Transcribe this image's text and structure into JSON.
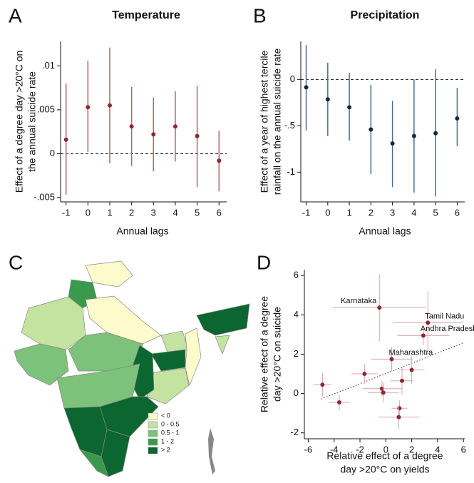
{
  "chart_data": [
    {
      "type": "errorbar",
      "panel_label": "A",
      "title": "Temperature",
      "ylabel": [
        "Effect of a degree day >20°C on",
        "the annual suicide rate"
      ],
      "xlabel": "Annual lags",
      "x": [
        -1,
        0,
        1,
        2,
        3,
        4,
        5,
        6
      ],
      "values": [
        0.0016,
        0.0053,
        0.0055,
        0.0031,
        0.0022,
        0.0031,
        0.002,
        -0.0008
      ],
      "lower": [
        -0.0047,
        0.0002,
        -0.0011,
        -0.0014,
        -0.002,
        -0.0009,
        -0.0038,
        -0.0043
      ],
      "upper": [
        0.008,
        0.0106,
        0.0121,
        0.0076,
        0.0064,
        0.0071,
        0.0077,
        0.0026
      ],
      "color": "#8b2a35",
      "bar_color": "#b0646a",
      "hline": 0,
      "xlim": [
        -1.25,
        6.35
      ],
      "xticks": [
        -1,
        0,
        1,
        2,
        3,
        4,
        5,
        6
      ],
      "ylim": [
        -0.0055,
        0.0128
      ],
      "yticks": [
        {
          "value": -0.005,
          "label": "-.005"
        },
        0,
        {
          "value": 0.005,
          "label": ".005"
        },
        {
          "value": 0.01,
          "label": ".01"
        }
      ]
    },
    {
      "type": "errorbar",
      "panel_label": "B",
      "title": "Precipitation",
      "ylabel": [
        "Effect of a year of highest tercile",
        "rainfall on the annual suicide rate"
      ],
      "xlabel": "Annual lags",
      "x": [
        -1,
        0,
        1,
        2,
        3,
        4,
        5,
        6
      ],
      "values": [
        -0.085,
        -0.215,
        -0.3,
        -0.54,
        -0.69,
        -0.61,
        -0.58,
        -0.42
      ],
      "lower": [
        -0.55,
        -0.61,
        -0.66,
        -1.02,
        -1.16,
        -1.22,
        -1.26,
        -0.72
      ],
      "upper": [
        0.37,
        0.18,
        0.07,
        -0.06,
        -0.23,
        0,
        0.11,
        -0.09
      ],
      "color": "#1c2540",
      "bar_color": "#4d6a94",
      "hline": 0,
      "xlim": [
        -1.25,
        6.35
      ],
      "xticks": [
        -1,
        0,
        1,
        2,
        3,
        4,
        5,
        6
      ],
      "ylim": [
        -1.32,
        0.41
      ],
      "yticks": [
        -1,
        {
          "value": -0.5,
          "label": "-.5"
        },
        0
      ]
    },
    {
      "type": "map",
      "panel_label": "C",
      "legend": [
        "< 0",
        "0 - 0.5",
        "0.5 - 1",
        "1 - 2",
        "> 2"
      ],
      "colors": [
        "#fdfbcb",
        "#c5e3a0",
        "#7cc27a",
        "#3a9a4c",
        "#0b6630"
      ]
    },
    {
      "type": "scatter",
      "panel_label": "D",
      "ylabel": [
        "Relative effect of a degree",
        "day >20°C on suicide"
      ],
      "xlabel": [
        "Relative effect of a degree",
        "day >20°C on yields"
      ],
      "x": [
        -0.5,
        3.25,
        2.9,
        0.45,
        2.0,
        -1.65,
        1.25,
        -4.9,
        -0.3,
        -0.2,
        -3.6,
        1.05,
        1.0
      ],
      "values": [
        4.37,
        3.6,
        2.95,
        1.75,
        1.2,
        1.0,
        0.65,
        0.45,
        0.25,
        0.05,
        -0.45,
        -0.75,
        -1.2
      ],
      "xerr": [
        3.6,
        2.7,
        2.0,
        1.6,
        1.0,
        1.0,
        0.9,
        0.7,
        1.5,
        1.2,
        0.8,
        0.6,
        1.6
      ],
      "yerr": [
        1.7,
        1.6,
        0.5,
        0.6,
        0.7,
        0.5,
        0.7,
        0.6,
        0.4,
        0.5,
        0.4,
        0.4,
        0.6
      ],
      "point_labels": [
        "Karnataka",
        "Tamil Nadu",
        "Andhra Pradesh",
        "Maharashtra",
        null,
        null,
        null,
        null,
        null,
        null,
        null,
        null,
        null
      ],
      "trend": {
        "x": [
          -5,
          6
        ],
        "y": [
          -0.28,
          2.58
        ]
      },
      "color": "#8b2a35",
      "bar_color": "#d9a3a8",
      "xlim": [
        -6.3,
        6.1
      ],
      "xticks": [
        -6,
        -4,
        -2,
        0,
        2,
        4,
        6
      ],
      "ylim": [
        -2.3,
        6.3
      ],
      "yticks": [
        -2,
        0,
        2,
        4,
        6
      ]
    }
  ]
}
